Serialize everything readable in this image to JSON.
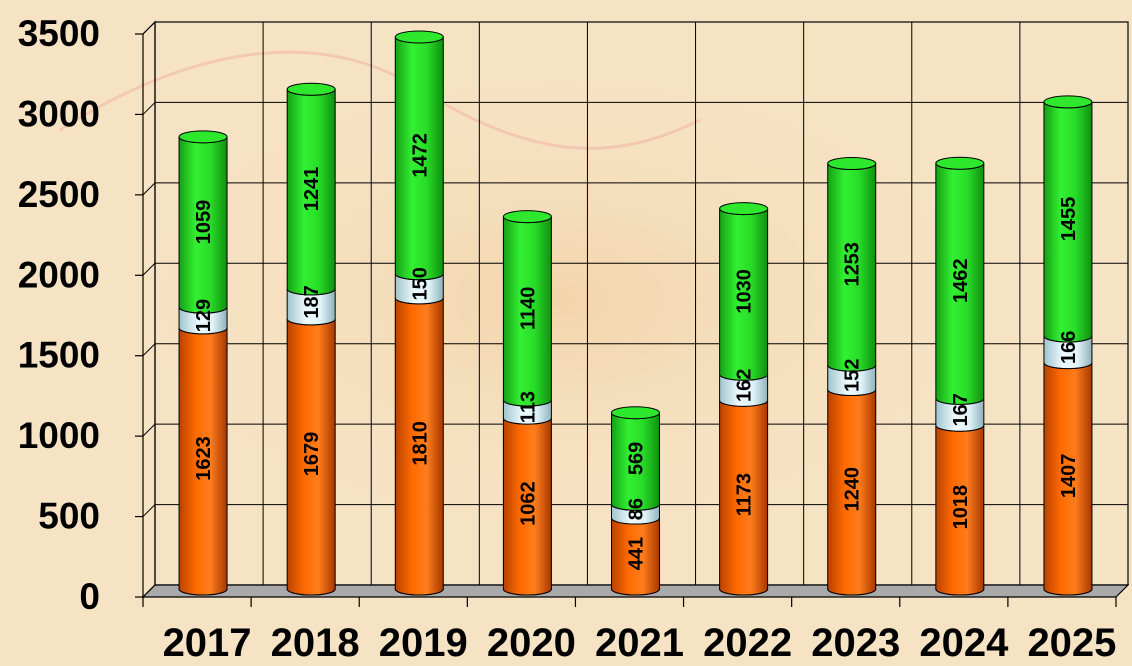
{
  "chart_data": {
    "type": "bar",
    "stacked": true,
    "style": "3d-cylinder",
    "title": "",
    "xlabel": "",
    "ylabel": "",
    "ylim": [
      0,
      3500
    ],
    "yticks": [
      0,
      500,
      1000,
      1500,
      2000,
      2500,
      3000,
      3500
    ],
    "grid": true,
    "legend": "none",
    "categories": [
      "2017",
      "2018",
      "2019",
      "2020",
      "2021",
      "2022",
      "2023",
      "2024",
      "2025"
    ],
    "series": [
      {
        "color": "#ff6a00",
        "values": [
          1623,
          1679,
          1810,
          1062,
          441,
          1173,
          1240,
          1018,
          1407
        ]
      },
      {
        "color": "#e2f6fb",
        "values": [
          129,
          187,
          150,
          113,
          86,
          162,
          152,
          167,
          166
        ]
      },
      {
        "color": "#2ee82e",
        "values": [
          1059,
          1241,
          1472,
          1140,
          569,
          1030,
          1253,
          1462,
          1455
        ]
      }
    ]
  }
}
